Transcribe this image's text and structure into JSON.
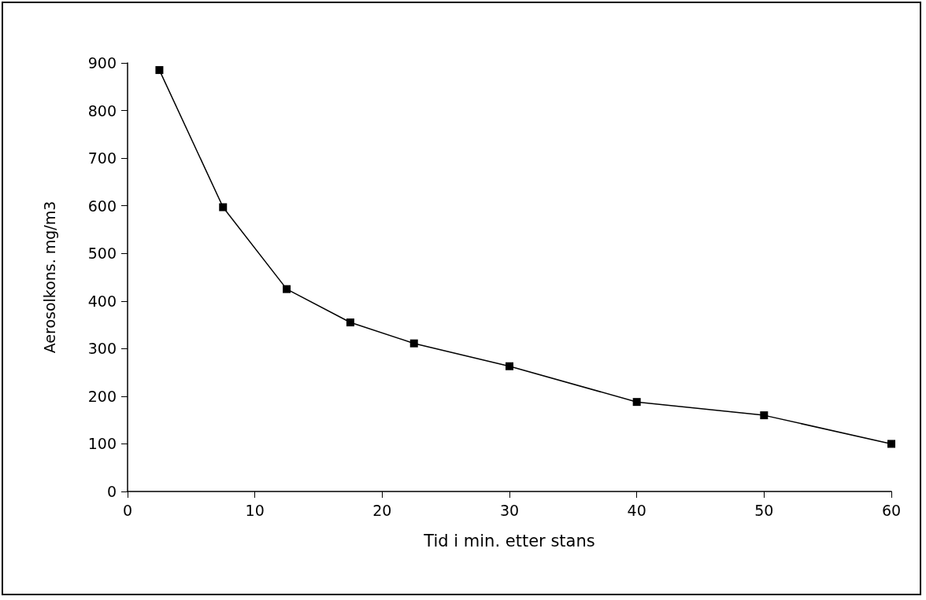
{
  "chart_data": {
    "type": "line",
    "xlabel": "Tid i min. etter stans",
    "ylabel": "Aerosolkons. mg/m3",
    "x": [
      2.5,
      7.5,
      12.5,
      17.5,
      22.5,
      30,
      40,
      50,
      60
    ],
    "series": [
      {
        "color": "#000000",
        "values": [
          885,
          597,
          425,
          355,
          311,
          263,
          188,
          160,
          100
        ]
      }
    ],
    "xlim": [
      0,
      60
    ],
    "xticks": [
      0,
      10,
      20,
      30,
      40,
      50,
      60
    ],
    "ylim": [
      0,
      900
    ],
    "yticks": [
      0,
      100,
      200,
      300,
      400,
      500,
      600,
      700,
      800,
      900
    ],
    "grid": false,
    "marker": "square",
    "line_style": "solid"
  }
}
